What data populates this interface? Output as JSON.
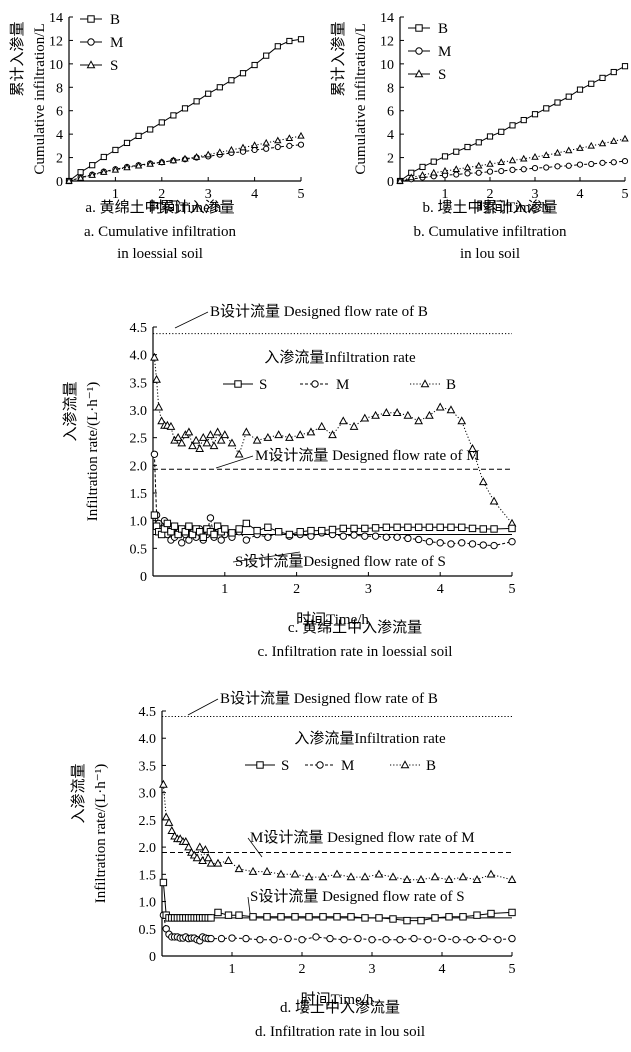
{
  "chart_data": [
    {
      "id": "a",
      "type": "line",
      "ylabel_cn": "累计入渗量",
      "ylabel_en": "Cumulative infiltration/L",
      "xlabel": "时间Time/h",
      "xlim": [
        0,
        5
      ],
      "ylim": [
        0,
        14
      ],
      "xticks": [
        "1",
        "2",
        "3",
        "4",
        "5"
      ],
      "yticks": [
        "0",
        "2",
        "4",
        "6",
        "8",
        "10",
        "12",
        "14"
      ],
      "legend": [
        "B",
        "M",
        "S"
      ],
      "caption_line1": "a. 黄绵土中累计入渗量",
      "caption_line2": "a. Cumulative infiltration",
      "caption_line3": "in loessial soil",
      "series": [
        {
          "name": "B",
          "marker": "square",
          "x": [
            0,
            0.25,
            0.5,
            0.75,
            1,
            1.25,
            1.5,
            1.75,
            2,
            2.25,
            2.5,
            2.75,
            3,
            3.25,
            3.5,
            3.75,
            4,
            4.25,
            4.5,
            4.75,
            5
          ],
          "y": [
            0,
            0.75,
            1.35,
            2.05,
            2.65,
            3.25,
            3.85,
            4.4,
            5.0,
            5.6,
            6.2,
            6.8,
            7.45,
            8.0,
            8.6,
            9.2,
            9.9,
            10.7,
            11.5,
            11.95,
            12.1
          ]
        },
        {
          "name": "M",
          "marker": "circle",
          "x": [
            0,
            0.25,
            0.5,
            0.75,
            1,
            1.25,
            1.5,
            1.75,
            2,
            2.25,
            2.5,
            2.75,
            3,
            3.25,
            3.5,
            3.75,
            4,
            4.25,
            4.5,
            4.75,
            5
          ],
          "y": [
            0,
            0.3,
            0.55,
            0.8,
            1.0,
            1.2,
            1.35,
            1.5,
            1.6,
            1.75,
            1.85,
            2.0,
            2.1,
            2.25,
            2.4,
            2.5,
            2.65,
            2.75,
            2.9,
            3.0,
            3.1
          ]
        },
        {
          "name": "S",
          "marker": "triangle",
          "x": [
            0,
            0.25,
            0.5,
            0.75,
            1,
            1.25,
            1.5,
            1.75,
            2,
            2.25,
            2.5,
            2.75,
            3,
            3.25,
            3.5,
            3.75,
            4,
            4.25,
            4.5,
            4.75,
            5
          ],
          "y": [
            0,
            0.25,
            0.5,
            0.75,
            0.95,
            1.15,
            1.3,
            1.45,
            1.6,
            1.75,
            1.9,
            2.05,
            2.25,
            2.45,
            2.65,
            2.85,
            3.05,
            3.25,
            3.45,
            3.65,
            3.85
          ]
        }
      ]
    },
    {
      "id": "b",
      "type": "line",
      "ylabel_cn": "累计入渗量",
      "ylabel_en": "Cumulative infiltration/L",
      "xlabel": "时间Time/h",
      "xlim": [
        0,
        5
      ],
      "ylim": [
        0,
        14
      ],
      "xticks": [
        "1",
        "2",
        "3",
        "4",
        "5"
      ],
      "yticks": [
        "0",
        "2",
        "4",
        "6",
        "8",
        "10",
        "12",
        "14"
      ],
      "legend": [
        "B",
        "M",
        "S"
      ],
      "caption_line1": "b. 塿土中累计入渗量",
      "caption_line2": "b. Cumulative infiltration",
      "caption_line3": "in lou soil",
      "series": [
        {
          "name": "B",
          "marker": "square",
          "x": [
            0,
            0.25,
            0.5,
            0.75,
            1,
            1.25,
            1.5,
            1.75,
            2,
            2.25,
            2.5,
            2.75,
            3,
            3.25,
            3.5,
            3.75,
            4,
            4.25,
            4.5,
            4.75,
            5
          ],
          "y": [
            0,
            0.7,
            1.2,
            1.65,
            2.1,
            2.5,
            2.9,
            3.3,
            3.8,
            4.2,
            4.75,
            5.2,
            5.7,
            6.2,
            6.7,
            7.2,
            7.8,
            8.3,
            8.8,
            9.3,
            9.8
          ]
        },
        {
          "name": "M",
          "marker": "circle",
          "x": [
            0,
            0.25,
            0.5,
            0.75,
            1,
            1.25,
            1.5,
            1.75,
            2,
            2.25,
            2.5,
            2.75,
            3,
            3.25,
            3.5,
            3.75,
            4,
            4.25,
            4.5,
            4.75,
            5
          ],
          "y": [
            0,
            0.15,
            0.3,
            0.4,
            0.5,
            0.55,
            0.65,
            0.7,
            0.8,
            0.85,
            0.95,
            1.0,
            1.1,
            1.15,
            1.25,
            1.3,
            1.4,
            1.45,
            1.55,
            1.6,
            1.7
          ]
        },
        {
          "name": "S",
          "marker": "triangle",
          "x": [
            0,
            0.25,
            0.5,
            0.75,
            1,
            1.25,
            1.5,
            1.75,
            2,
            2.25,
            2.5,
            2.75,
            3,
            3.25,
            3.5,
            3.75,
            4,
            4.25,
            4.5,
            4.75,
            5
          ],
          "y": [
            0,
            0.3,
            0.5,
            0.7,
            0.85,
            1.0,
            1.15,
            1.3,
            1.45,
            1.6,
            1.75,
            1.9,
            2.05,
            2.2,
            2.4,
            2.6,
            2.8,
            3.0,
            3.2,
            3.4,
            3.6
          ]
        }
      ]
    },
    {
      "id": "c",
      "type": "line",
      "ylabel_cn": "入渗流量",
      "ylabel_en": "Infiltration rate/(L·h⁻¹)",
      "xlabel": "时间Time/h",
      "xlim": [
        0,
        5
      ],
      "ylim": [
        0,
        4.5
      ],
      "xticks": [
        "1",
        "2",
        "3",
        "4",
        "5"
      ],
      "yticks": [
        "0",
        "0.5",
        "1.0",
        "1.5",
        "2.0",
        "2.5",
        "3.0",
        "3.5",
        "4.0",
        "4.5"
      ],
      "legend_title": "入渗流量Infiltration rate",
      "legend": [
        "S",
        "M",
        "B"
      ],
      "ref_lines": [
        {
          "label": "B设计流量 Designed flow rate of B",
          "y": 4.38,
          "style": "dotted"
        },
        {
          "label": "M设计流量 Designed flow rate of M",
          "y": 1.93,
          "style": "dashed"
        },
        {
          "label": "S设计流量Designed flow rate of S",
          "y": 0.75,
          "style": "solid"
        }
      ],
      "caption_line1": "c. 黄绵土中入渗流量",
      "caption_line2": "c. Infiltration rate in loessial soil",
      "series": [
        {
          "name": "B",
          "marker": "triangle",
          "x": [
            0.02,
            0.05,
            0.08,
            0.12,
            0.16,
            0.2,
            0.25,
            0.3,
            0.35,
            0.4,
            0.45,
            0.5,
            0.55,
            0.6,
            0.65,
            0.7,
            0.75,
            0.8,
            0.85,
            0.9,
            0.95,
            1.0,
            1.1,
            1.2,
            1.3,
            1.45,
            1.6,
            1.75,
            1.9,
            2.05,
            2.2,
            2.35,
            2.5,
            2.65,
            2.8,
            2.95,
            3.1,
            3.25,
            3.4,
            3.55,
            3.7,
            3.85,
            4.0,
            4.15,
            4.3,
            4.45,
            4.6,
            4.75,
            5.0
          ],
          "y": [
            3.95,
            3.55,
            3.05,
            2.8,
            2.72,
            2.72,
            2.7,
            2.45,
            2.5,
            2.4,
            2.55,
            2.6,
            2.35,
            2.45,
            2.3,
            2.5,
            2.4,
            2.55,
            2.35,
            2.6,
            2.45,
            2.55,
            2.4,
            2.2,
            2.6,
            2.45,
            2.5,
            2.55,
            2.5,
            2.55,
            2.6,
            2.7,
            2.55,
            2.8,
            2.7,
            2.85,
            2.9,
            2.95,
            2.95,
            2.9,
            2.8,
            2.9,
            3.05,
            3.0,
            2.8,
            2.3,
            1.7,
            1.35,
            0.95
          ]
        },
        {
          "name": "M",
          "marker": "circle",
          "x": [
            0.02,
            0.05,
            0.08,
            0.12,
            0.16,
            0.2,
            0.25,
            0.3,
            0.35,
            0.4,
            0.45,
            0.5,
            0.55,
            0.6,
            0.65,
            0.7,
            0.75,
            0.8,
            0.85,
            0.9,
            0.95,
            1.0,
            1.1,
            1.2,
            1.3,
            1.45,
            1.6,
            1.75,
            1.9,
            2.05,
            2.2,
            2.35,
            2.5,
            2.65,
            2.8,
            2.95,
            3.1,
            3.25,
            3.4,
            3.55,
            3.7,
            3.85,
            4.0,
            4.15,
            4.3,
            4.45,
            4.6,
            4.75,
            5.0
          ],
          "y": [
            2.2,
            1.1,
            0.95,
            0.85,
            1.0,
            0.75,
            0.65,
            0.7,
            0.85,
            0.6,
            0.75,
            0.65,
            0.8,
            0.7,
            0.85,
            0.65,
            0.75,
            1.05,
            0.7,
            0.8,
            0.65,
            0.75,
            0.7,
            0.8,
            0.65,
            0.75,
            0.7,
            0.8,
            0.72,
            0.75,
            0.72,
            0.78,
            0.75,
            0.72,
            0.74,
            0.72,
            0.72,
            0.7,
            0.7,
            0.68,
            0.66,
            0.62,
            0.6,
            0.58,
            0.6,
            0.58,
            0.56,
            0.55,
            0.62
          ]
        },
        {
          "name": "S",
          "marker": "square",
          "x": [
            0.02,
            0.05,
            0.08,
            0.12,
            0.16,
            0.2,
            0.25,
            0.3,
            0.35,
            0.4,
            0.45,
            0.5,
            0.55,
            0.6,
            0.65,
            0.7,
            0.75,
            0.8,
            0.85,
            0.9,
            0.95,
            1.0,
            1.1,
            1.2,
            1.3,
            1.45,
            1.6,
            1.75,
            1.9,
            2.05,
            2.2,
            2.35,
            2.5,
            2.65,
            2.8,
            2.95,
            3.1,
            3.25,
            3.4,
            3.55,
            3.7,
            3.85,
            4.0,
            4.15,
            4.3,
            4.45,
            4.6,
            4.75,
            5.0
          ],
          "y": [
            1.1,
            0.9,
            0.8,
            0.75,
            0.85,
            0.95,
            0.8,
            0.9,
            0.75,
            0.85,
            0.8,
            0.9,
            0.75,
            0.85,
            0.8,
            0.7,
            0.85,
            0.8,
            0.75,
            0.9,
            0.8,
            0.85,
            0.78,
            0.85,
            0.95,
            0.82,
            0.88,
            0.8,
            0.75,
            0.8,
            0.82,
            0.82,
            0.84,
            0.86,
            0.86,
            0.86,
            0.87,
            0.88,
            0.88,
            0.88,
            0.88,
            0.88,
            0.88,
            0.88,
            0.88,
            0.86,
            0.85,
            0.85,
            0.86
          ]
        }
      ]
    },
    {
      "id": "d",
      "type": "line",
      "ylabel_cn": "入渗流量",
      "ylabel_en": "Infiltration rate/(L·h⁻¹)",
      "xlabel": "时间Time/h",
      "xlim": [
        0,
        5
      ],
      "ylim": [
        0,
        4.5
      ],
      "xticks": [
        "1",
        "2",
        "3",
        "4",
        "5"
      ],
      "yticks": [
        "0",
        "0.5",
        "1.0",
        "1.5",
        "2.0",
        "2.5",
        "3.0",
        "3.5",
        "4.0",
        "4.5"
      ],
      "legend_title": "入渗流量Infiltration rate",
      "legend": [
        "S",
        "M",
        "B"
      ],
      "ref_lines": [
        {
          "label": "B设计流量 Designed flow rate of B",
          "y": 4.4,
          "style": "dotted"
        },
        {
          "label": "M设计流量 Designed flow rate of M",
          "y": 1.9,
          "style": "dashed"
        },
        {
          "label": "S设计流量 Designed flow rate of S",
          "y": 0.7,
          "style": "solid"
        }
      ],
      "caption_line1": "d. 塿土中入渗流量",
      "caption_line2": "d. Infiltration rate in lou soil",
      "series": [
        {
          "name": "B",
          "marker": "triangle",
          "x": [
            0.02,
            0.06,
            0.1,
            0.14,
            0.18,
            0.22,
            0.26,
            0.3,
            0.34,
            0.38,
            0.42,
            0.46,
            0.5,
            0.54,
            0.58,
            0.62,
            0.66,
            0.7,
            0.8,
            0.95,
            1.1,
            1.3,
            1.5,
            1.7,
            1.9,
            2.1,
            2.3,
            2.5,
            2.7,
            2.9,
            3.1,
            3.3,
            3.5,
            3.7,
            3.9,
            4.1,
            4.3,
            4.5,
            4.7,
            5.0
          ],
          "y": [
            3.15,
            2.55,
            2.45,
            2.3,
            2.2,
            2.15,
            2.15,
            2.1,
            2.1,
            2.0,
            1.9,
            1.85,
            1.8,
            2.0,
            1.75,
            1.95,
            1.8,
            1.7,
            1.7,
            1.75,
            1.6,
            1.55,
            1.55,
            1.5,
            1.5,
            1.45,
            1.45,
            1.5,
            1.45,
            1.45,
            1.5,
            1.45,
            1.4,
            1.4,
            1.45,
            1.4,
            1.45,
            1.4,
            1.5,
            1.4
          ]
        },
        {
          "name": "M",
          "marker": "circle",
          "x": [
            0.02,
            0.06,
            0.1,
            0.14,
            0.18,
            0.22,
            0.26,
            0.3,
            0.34,
            0.38,
            0.42,
            0.46,
            0.5,
            0.54,
            0.58,
            0.62,
            0.66,
            0.7,
            0.85,
            1.0,
            1.2,
            1.4,
            1.6,
            1.8,
            2.0,
            2.2,
            2.4,
            2.6,
            2.8,
            3.0,
            3.2,
            3.4,
            3.6,
            3.8,
            4.0,
            4.2,
            4.4,
            4.6,
            4.8,
            5.0
          ],
          "y": [
            0.75,
            0.5,
            0.4,
            0.35,
            0.35,
            0.35,
            0.33,
            0.33,
            0.35,
            0.32,
            0.33,
            0.33,
            0.3,
            0.28,
            0.35,
            0.33,
            0.32,
            0.32,
            0.32,
            0.33,
            0.32,
            0.3,
            0.3,
            0.32,
            0.3,
            0.35,
            0.32,
            0.3,
            0.32,
            0.3,
            0.3,
            0.3,
            0.32,
            0.3,
            0.32,
            0.3,
            0.3,
            0.32,
            0.3,
            0.32
          ]
        },
        {
          "name": "S",
          "marker": "square",
          "x": [
            0.02,
            0.06,
            0.1,
            0.14,
            0.18,
            0.22,
            0.26,
            0.3,
            0.34,
            0.38,
            0.42,
            0.46,
            0.5,
            0.54,
            0.58,
            0.62,
            0.66,
            0.7,
            0.8,
            0.95,
            1.1,
            1.3,
            1.5,
            1.7,
            1.9,
            2.1,
            2.3,
            2.5,
            2.7,
            2.9,
            3.1,
            3.3,
            3.5,
            3.7,
            3.9,
            4.1,
            4.3,
            4.5,
            4.7,
            5.0
          ],
          "y": [
            1.35,
            0.75,
            0.7,
            0.7,
            0.7,
            0.7,
            0.7,
            0.7,
            0.7,
            0.7,
            0.7,
            0.7,
            0.7,
            0.7,
            0.7,
            0.7,
            0.7,
            0.7,
            0.8,
            0.75,
            0.75,
            0.72,
            0.72,
            0.72,
            0.72,
            0.72,
            0.72,
            0.72,
            0.72,
            0.7,
            0.7,
            0.68,
            0.65,
            0.65,
            0.7,
            0.72,
            0.72,
            0.75,
            0.78,
            0.8
          ]
        }
      ]
    }
  ]
}
